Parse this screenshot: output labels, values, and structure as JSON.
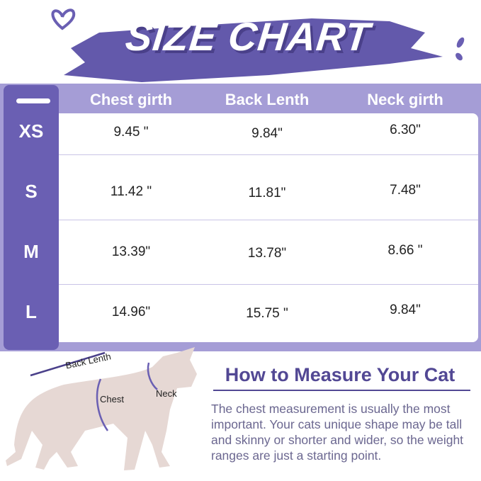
{
  "title": "SIZE CHART",
  "colors": {
    "accent": "#6a5fb3",
    "header": "#a59dd6",
    "heading": "#524894"
  },
  "columns": [
    "Chest girth",
    "Back Lenth",
    "Neck girth"
  ],
  "rows": [
    {
      "size": "XS",
      "values": [
        "9.45 \"",
        "9.84\"",
        "6.30\""
      ]
    },
    {
      "size": "S",
      "values": [
        "11.42 \"",
        "11.81\"",
        "7.48\""
      ]
    },
    {
      "size": "M",
      "values": [
        "13.39\"",
        "13.78\"",
        "8.66 \""
      ]
    },
    {
      "size": "L",
      "values": [
        "14.96\"",
        "15.75 \"",
        "9.84\""
      ]
    }
  ],
  "diagram": {
    "back": "Back Lenth",
    "chest": "Chest",
    "neck": "Neck"
  },
  "measure": {
    "heading": "How to Measure Your Cat",
    "text": "The chest measurement is usually the most important. Your cats unique shape may be tall and skinny or shorter and wider, so the weight ranges are just a starting point."
  }
}
